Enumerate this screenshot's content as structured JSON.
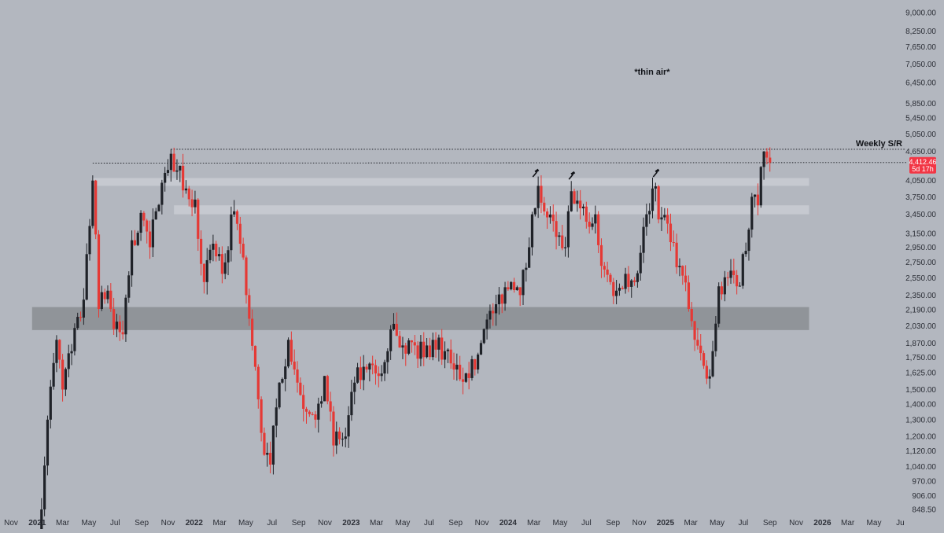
{
  "chart_data": {
    "type": "candlestick",
    "interval": "weekly",
    "scale": "log",
    "y_ticks": [
      848.5,
      906,
      970,
      1040,
      1120,
      1200,
      1300,
      1400,
      1500,
      1625,
      1750,
      1870,
      2030,
      2190,
      2350,
      2550,
      2750,
      2950,
      3150,
      3450,
      3750,
      4050,
      4650,
      5050,
      5450,
      5850,
      6450,
      7050,
      7650,
      8250,
      9000
    ],
    "y_tick_labels": [
      "848.50",
      "906.00",
      "970.00",
      "1,040.00",
      "1,120.00",
      "1,200.00",
      "1,300.00",
      "1,400.00",
      "1,500.00",
      "1,625.00",
      "1,750.00",
      "1,870.00",
      "2,030.00",
      "2,190.00",
      "2,350.00",
      "2,550.00",
      "2,750.00",
      "2,950.00",
      "3,150.00",
      "3,450.00",
      "3,750.00",
      "4,050.00",
      "4,650.00",
      "5,050.00",
      "5,450.00",
      "5,850.00",
      "6,450.00",
      "7,050.00",
      "7,650.00",
      "8,250.00",
      "9,000.00"
    ],
    "x_range": [
      "2020-11-01",
      "2026-07-15"
    ],
    "x_ticks": [
      {
        "date": "2020-11-01",
        "label": "Nov",
        "year": false
      },
      {
        "date": "2021-01-01",
        "label": "2021",
        "year": true
      },
      {
        "date": "2021-03-01",
        "label": "Mar",
        "year": false
      },
      {
        "date": "2021-05-01",
        "label": "May",
        "year": false
      },
      {
        "date": "2021-07-01",
        "label": "Jul",
        "year": false
      },
      {
        "date": "2021-09-01",
        "label": "Sep",
        "year": false
      },
      {
        "date": "2021-11-01",
        "label": "Nov",
        "year": false
      },
      {
        "date": "2022-01-01",
        "label": "2022",
        "year": true
      },
      {
        "date": "2022-03-01",
        "label": "Mar",
        "year": false
      },
      {
        "date": "2022-05-01",
        "label": "May",
        "year": false
      },
      {
        "date": "2022-07-01",
        "label": "Jul",
        "year": false
      },
      {
        "date": "2022-09-01",
        "label": "Sep",
        "year": false
      },
      {
        "date": "2022-11-01",
        "label": "Nov",
        "year": false
      },
      {
        "date": "2023-01-01",
        "label": "2023",
        "year": true
      },
      {
        "date": "2023-03-01",
        "label": "Mar",
        "year": false
      },
      {
        "date": "2023-05-01",
        "label": "May",
        "year": false
      },
      {
        "date": "2023-07-01",
        "label": "Jul",
        "year": false
      },
      {
        "date": "2023-09-01",
        "label": "Sep",
        "year": false
      },
      {
        "date": "2023-11-01",
        "label": "Nov",
        "year": false
      },
      {
        "date": "2024-01-01",
        "label": "2024",
        "year": true
      },
      {
        "date": "2024-03-01",
        "label": "Mar",
        "year": false
      },
      {
        "date": "2024-05-01",
        "label": "May",
        "year": false
      },
      {
        "date": "2024-07-01",
        "label": "Jul",
        "year": false
      },
      {
        "date": "2024-09-01",
        "label": "Sep",
        "year": false
      },
      {
        "date": "2024-11-01",
        "label": "Nov",
        "year": false
      },
      {
        "date": "2025-01-01",
        "label": "2025",
        "year": true
      },
      {
        "date": "2025-03-01",
        "label": "Mar",
        "year": false
      },
      {
        "date": "2025-05-01",
        "label": "May",
        "year": false
      },
      {
        "date": "2025-07-01",
        "label": "Jul",
        "year": false
      },
      {
        "date": "2025-09-01",
        "label": "Sep",
        "year": false
      },
      {
        "date": "2025-11-01",
        "label": "Nov",
        "year": false
      },
      {
        "date": "2026-01-01",
        "label": "2026",
        "year": true
      },
      {
        "date": "2026-03-01",
        "label": "Mar",
        "year": false
      },
      {
        "date": "2026-05-01",
        "label": "May",
        "year": false
      },
      {
        "date": "2026-07-01",
        "label": "Ju",
        "year": false
      }
    ],
    "anchors": [
      [
        "2021-01-04",
        750
      ],
      [
        "2021-01-25",
        1300
      ],
      [
        "2021-02-15",
        1900
      ],
      [
        "2021-03-01",
        1500
      ],
      [
        "2021-03-22",
        1800
      ],
      [
        "2021-04-19",
        2300
      ],
      [
        "2021-05-10",
        4050
      ],
      [
        "2021-05-24",
        2200
      ],
      [
        "2021-06-14",
        2400
      ],
      [
        "2021-06-28",
        2000
      ],
      [
        "2021-07-19",
        1950
      ],
      [
        "2021-08-09",
        3050
      ],
      [
        "2021-09-06",
        3350
      ],
      [
        "2021-09-20",
        2950
      ],
      [
        "2021-10-04",
        3500
      ],
      [
        "2021-10-25",
        4200
      ],
      [
        "2021-11-08",
        4600
      ],
      [
        "2021-11-22",
        4250
      ],
      [
        "2021-12-13",
        3900
      ],
      [
        "2022-01-03",
        3700
      ],
      [
        "2022-01-24",
        2500
      ],
      [
        "2022-02-14",
        3000
      ],
      [
        "2022-03-07",
        2600
      ],
      [
        "2022-04-04",
        3500
      ],
      [
        "2022-04-18",
        3000
      ],
      [
        "2022-05-09",
        2100
      ],
      [
        "2022-06-13",
        1100
      ],
      [
        "2022-06-27",
        1050
      ],
      [
        "2022-07-18",
        1550
      ],
      [
        "2022-08-08",
        1900
      ],
      [
        "2022-08-29",
        1550
      ],
      [
        "2022-09-19",
        1350
      ],
      [
        "2022-10-10",
        1300
      ],
      [
        "2022-10-31",
        1600
      ],
      [
        "2022-11-21",
        1150
      ],
      [
        "2022-12-19",
        1200
      ],
      [
        "2023-01-09",
        1550
      ],
      [
        "2023-02-06",
        1650
      ],
      [
        "2023-03-06",
        1600
      ],
      [
        "2023-03-27",
        1800
      ],
      [
        "2023-04-10",
        2050
      ],
      [
        "2023-05-01",
        1850
      ],
      [
        "2023-05-29",
        1850
      ],
      [
        "2023-06-19",
        1750
      ],
      [
        "2023-07-10",
        1900
      ],
      [
        "2023-08-07",
        1800
      ],
      [
        "2023-08-28",
        1650
      ],
      [
        "2023-09-25",
        1620
      ],
      [
        "2023-10-16",
        1650
      ],
      [
        "2023-11-06",
        2000
      ],
      [
        "2023-12-04",
        2250
      ],
      [
        "2024-01-08",
        2500
      ],
      [
        "2024-01-29",
        2350
      ],
      [
        "2024-02-19",
        2950
      ],
      [
        "2024-03-11",
        3950
      ],
      [
        "2024-04-01",
        3400
      ],
      [
        "2024-04-22",
        3100
      ],
      [
        "2024-05-13",
        2950
      ],
      [
        "2024-05-27",
        3850
      ],
      [
        "2024-06-17",
        3550
      ],
      [
        "2024-07-08",
        3250
      ],
      [
        "2024-07-22",
        3450
      ],
      [
        "2024-08-05",
        2700
      ],
      [
        "2024-08-26",
        2500
      ],
      [
        "2024-09-09",
        2400
      ],
      [
        "2024-09-30",
        2600
      ],
      [
        "2024-10-21",
        2500
      ],
      [
        "2024-11-11",
        3250
      ],
      [
        "2024-12-02",
        3900
      ],
      [
        "2024-12-23",
        3400
      ],
      [
        "2025-01-06",
        3300
      ],
      [
        "2025-02-03",
        2700
      ],
      [
        "2025-02-24",
        2200
      ],
      [
        "2025-03-10",
        1900
      ],
      [
        "2025-04-07",
        1580
      ],
      [
        "2025-04-21",
        1800
      ],
      [
        "2025-05-05",
        2450
      ],
      [
        "2025-05-26",
        2550
      ],
      [
        "2025-06-16",
        2450
      ],
      [
        "2025-07-07",
        2900
      ],
      [
        "2025-07-21",
        3750
      ],
      [
        "2025-08-04",
        3600
      ],
      [
        "2025-08-18",
        4650
      ],
      [
        "2025-09-01",
        4412.46
      ]
    ],
    "hlines": [
      {
        "y_start": 4400,
        "y_end": 4412.46,
        "from": "2021-05-10",
        "to": "2026-07-15",
        "style": "dotted"
      },
      {
        "y": 4700,
        "from": "2021-11-08",
        "to": "2026-07-15",
        "style": "dotted",
        "label": "Weekly S/R"
      }
    ],
    "zones": [
      {
        "y_low": 1990,
        "y_high": 2220,
        "from": "2020-12-20",
        "to": "2025-12-01",
        "shade": "dark"
      },
      {
        "y_low": 3950,
        "y_high": 4100,
        "from": "2021-05-10",
        "to": "2025-12-01",
        "shade": "light"
      },
      {
        "y_low": 3450,
        "y_high": 3600,
        "from": "2021-11-15",
        "to": "2025-12-01",
        "shade": "light"
      }
    ],
    "annotations": [
      {
        "text": "*thin air*",
        "x": "2024-12-01",
        "y": 6700
      }
    ],
    "markers": [
      {
        "x": "2024-03-04",
        "y": 4200
      },
      {
        "x": "2024-05-27",
        "y": 4150
      },
      {
        "x": "2024-12-09",
        "y": 4200
      }
    ],
    "last_price": {
      "value": 4412.46,
      "label": "4,412.46",
      "countdown": "5d 17h"
    },
    "colors": {
      "up": "#1f2228",
      "down": "#e53935",
      "background": "#b3b7bf",
      "dark_zone": "#8e9197",
      "light_zone": "#c8cbd1",
      "price_tag": "#f23645"
    }
  }
}
